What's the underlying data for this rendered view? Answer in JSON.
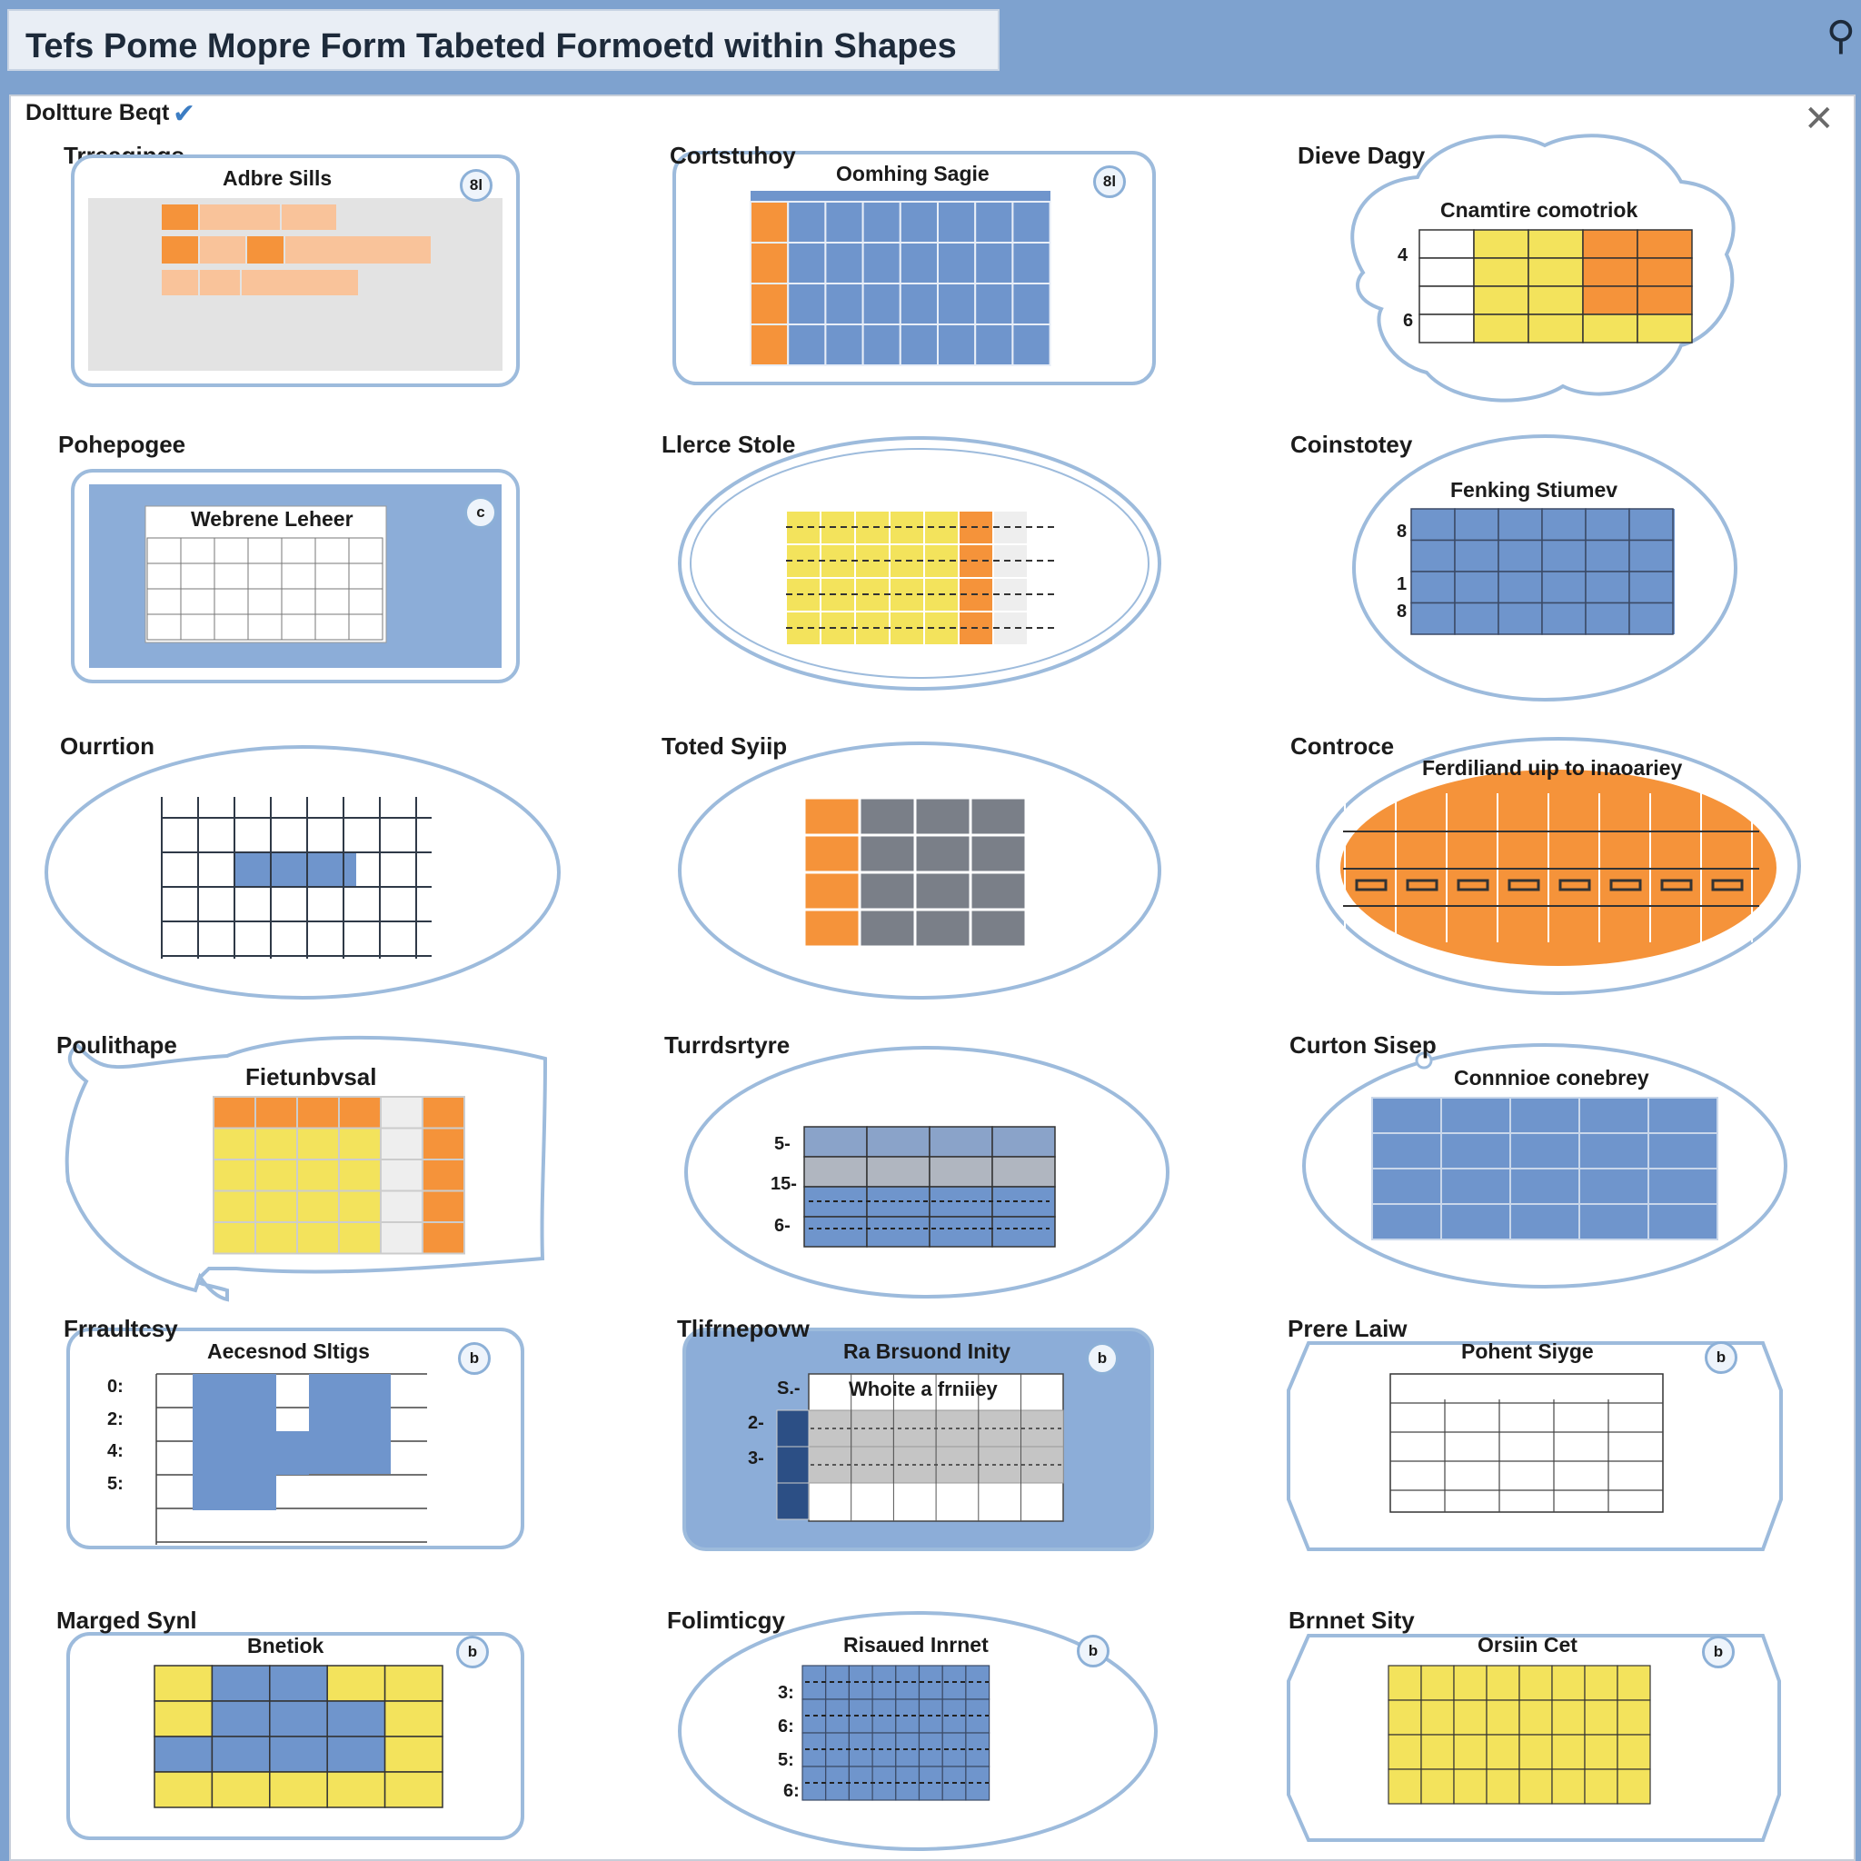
{
  "window": {
    "title": "Tefs Pome Mopre Form Tabeted Formoetd within Shapes"
  },
  "dialog": {
    "title": "Doltture Beqt"
  },
  "tiles": [
    {
      "label": "Trreagings",
      "caption": "Adbre Sills",
      "badge": "8l"
    },
    {
      "label": "Cortstuhoy",
      "caption": "Oomhing Sagie",
      "badge": "8l"
    },
    {
      "label": "Dieve Dagy",
      "caption": "Cnamtire comotriok",
      "rows": [
        "4",
        "6"
      ]
    },
    {
      "label": "Pohepogee",
      "caption": "Webrene Leheer",
      "badge": "c"
    },
    {
      "label": "Llerce Stole"
    },
    {
      "label": "Coinstotey",
      "caption": "Fenking Stiumev",
      "rows": [
        "8",
        "1",
        "8"
      ]
    },
    {
      "label": "Ourrtion"
    },
    {
      "label": "Toted Syiip"
    },
    {
      "label": "Controce",
      "caption": "Ferdiliand uip to inaoariey"
    },
    {
      "label": "Poulithape",
      "caption": "Fietunbvsal"
    },
    {
      "label": "Turrdsrtyre",
      "rows": [
        "5-",
        "15-",
        "6-"
      ]
    },
    {
      "label": "Curton Sisep",
      "caption": "Connnioe conebrey"
    },
    {
      "label": "Frraultcsy",
      "caption": "Aecesnod Sltigs",
      "badge": "b",
      "rows": [
        "0:",
        "2:",
        "4:",
        "5:"
      ]
    },
    {
      "label": "Tlifrnepovw",
      "caption": "Ra Brsuond Inity",
      "subcaption": "Whoite a frniiey",
      "badge": "b",
      "rows": [
        "S.-",
        "2-",
        "3-"
      ]
    },
    {
      "label": "Prere Laiw",
      "caption": "Pohent Siyge",
      "badge": "b"
    },
    {
      "label": "Marged Synl",
      "caption": "Bnetiok",
      "badge": "b"
    },
    {
      "label": "Folimticgy",
      "caption": "Risaued Inrnet",
      "badge": "b",
      "rows": [
        "3:",
        "6:",
        "5:",
        "6:"
      ]
    },
    {
      "label": "Brnnet Sity",
      "caption": "Orsiin Cet",
      "badge": "b"
    }
  ],
  "colors": {
    "frame": "#9dbbdc",
    "blue": "#6f95cc",
    "orange": "#f5933a",
    "yellow": "#f3e35c",
    "gray": "#7a7f88",
    "grid": "#2f3947"
  }
}
